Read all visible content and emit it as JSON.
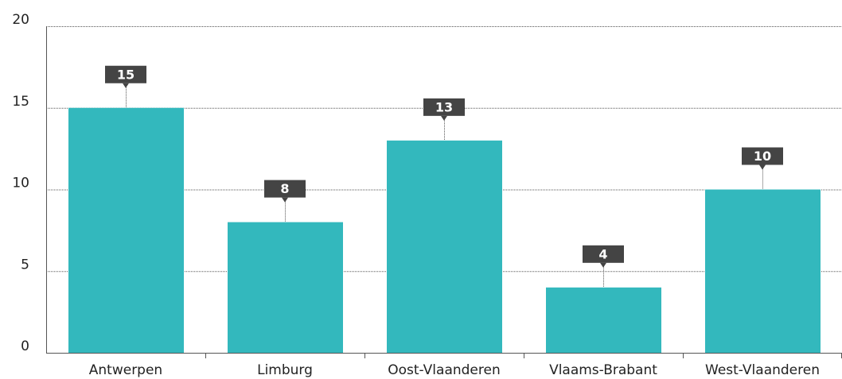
{
  "chart_data": {
    "type": "bar",
    "categories": [
      "Antwerpen",
      "Limburg",
      "Oost-Vlaanderen",
      "Vlaams-Brabant",
      "West-Vlaanderen"
    ],
    "values": [
      15,
      8,
      13,
      4,
      10
    ],
    "color": "#33b8bd",
    "ylim": [
      0,
      20
    ],
    "yticks": [
      0,
      5,
      10,
      15,
      20
    ],
    "grid": true
  }
}
